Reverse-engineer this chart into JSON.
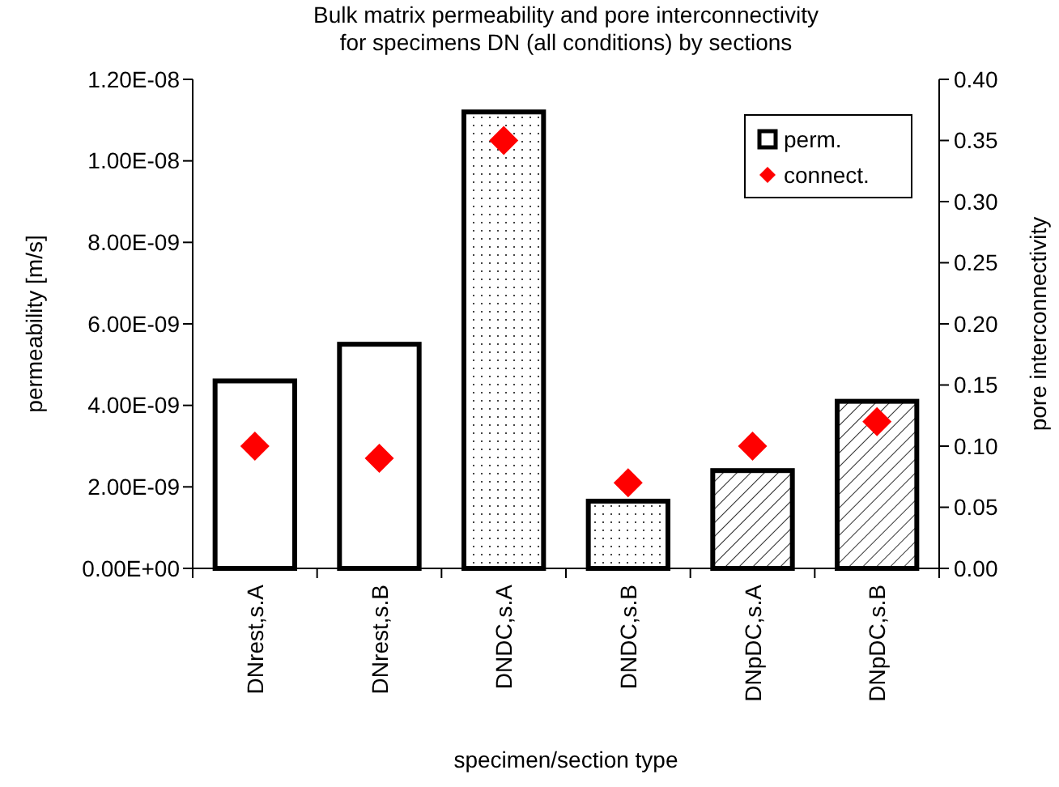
{
  "chart_data": {
    "type": "bar",
    "title": "Bulk matrix permeability and pore interconnectivity\nfor specimens DN (all conditions) by sections",
    "xlabel": "specimen/section type",
    "ylabel": "permeability [m/s]",
    "y2label": "pore interconnectivity",
    "categories": [
      "DNrest,s.A",
      "DNrest,s.B",
      "DNDC,s.A",
      "DNDC,s.B",
      "DNpDC,s.A",
      "DNpDC,s.B"
    ],
    "series": [
      {
        "name": "perm.",
        "color": "#000000",
        "values": [
          4.6e-09,
          5.5e-09,
          1.12e-08,
          1.65e-09,
          2.4e-09,
          4.1e-09
        ]
      },
      {
        "name": "connect.",
        "type": "scatter",
        "axis": "y2",
        "marker": "diamond",
        "color": "#ff0000",
        "values": [
          0.1,
          0.09,
          0.35,
          0.07,
          0.1,
          0.12
        ]
      }
    ],
    "ylim": [
      0,
      1.2e-08
    ],
    "yticks": [
      {
        "value": 0,
        "label": "0.00E+00"
      },
      {
        "value": 2e-09,
        "label": "2.00E-09"
      },
      {
        "value": 4e-09,
        "label": "4.00E-09"
      },
      {
        "value": 6e-09,
        "label": "6.00E-09"
      },
      {
        "value": 8e-09,
        "label": "8.00E-09"
      },
      {
        "value": 1e-08,
        "label": "1.00E-08"
      },
      {
        "value": 1.2e-08,
        "label": "1.20E-08"
      }
    ],
    "y2lim": [
      0,
      0.4
    ],
    "y2ticks": [
      {
        "value": 0,
        "label": "0.00"
      },
      {
        "value": 0.05,
        "label": "0.05"
      },
      {
        "value": 0.1,
        "label": "0.10"
      },
      {
        "value": 0.15,
        "label": "0.15"
      },
      {
        "value": 0.2,
        "label": "0.20"
      },
      {
        "value": 0.25,
        "label": "0.25"
      },
      {
        "value": 0.3,
        "label": "0.30"
      },
      {
        "value": 0.35,
        "label": "0.35"
      },
      {
        "value": 0.4,
        "label": "0.40"
      }
    ],
    "grid": false,
    "legend": "top right"
  }
}
